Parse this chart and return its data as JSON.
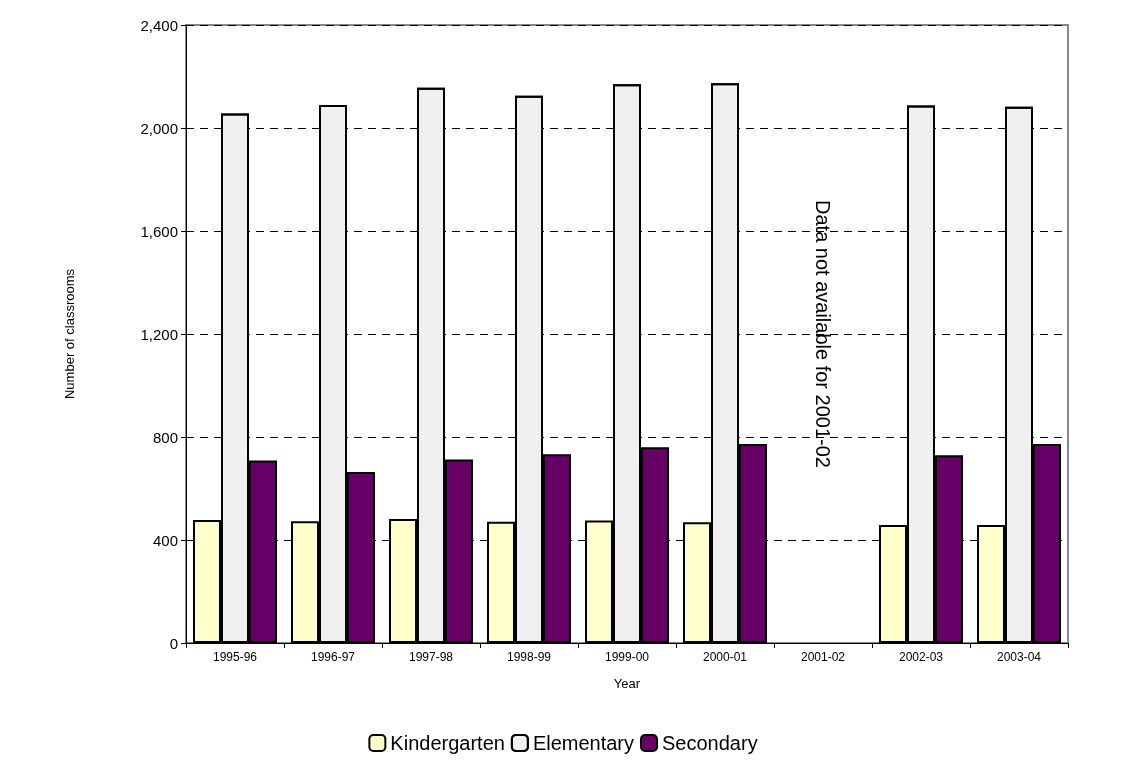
{
  "chart_data": {
    "type": "bar",
    "xlabel": "Year",
    "ylabel": "Number of classrooms",
    "categories": [
      "1995-96",
      "1996-97",
      "1997-98",
      "1998-99",
      "1999-00",
      "2000-01",
      "2001-02",
      "2002-03",
      "2003-04"
    ],
    "series": [
      {
        "name": "Kindergarten",
        "color": "#ffffcc",
        "values": [
          478,
          473,
          482,
          471,
          476,
          469,
          null,
          458,
          458
        ]
      },
      {
        "name": "Elementary",
        "color": "#f0f0f0",
        "values": [
          2056,
          2089,
          2156,
          2125,
          2170,
          2174,
          null,
          2087,
          2083
        ]
      },
      {
        "name": "Secondary",
        "color": "#660066",
        "values": [
          709,
          664,
          713,
          733,
          760,
          773,
          null,
          729,
          773
        ]
      }
    ],
    "ylim": [
      0,
      2400
    ],
    "yticks": [
      0,
      400,
      800,
      {
        "value": 1200,
        "label": "1,200"
      },
      {
        "value": 1600,
        "label": "1,600"
      },
      {
        "value": 2000,
        "label": "2,000"
      },
      {
        "value": 2400,
        "label": "2,400"
      }
    ],
    "grid": "y",
    "legend": "bottom",
    "annotations": [
      "Data not available for 2001-02"
    ]
  }
}
